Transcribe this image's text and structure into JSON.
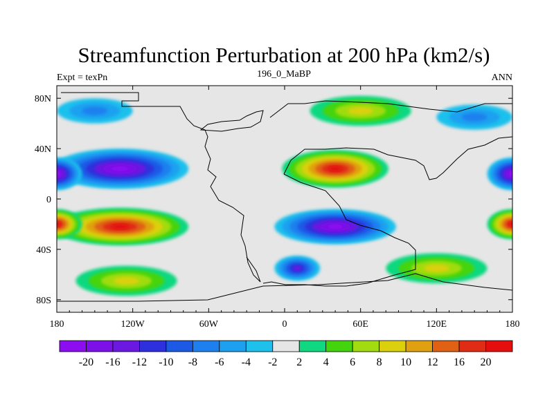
{
  "chart_data": {
    "type": "heatmap",
    "title": "Streamfunction Perturbation at 200 hPa (km2/s)",
    "subtitle_left": "Expt = texPn",
    "subtitle_center": "196_0_MaBP",
    "subtitle_right": "ANN",
    "x_range": [
      -180,
      180
    ],
    "y_range": [
      -90,
      90
    ],
    "x_ticks": [
      {
        "value": -180,
        "label": "180"
      },
      {
        "value": -120,
        "label": "120W"
      },
      {
        "value": -60,
        "label": "60W"
      },
      {
        "value": 0,
        "label": "0"
      },
      {
        "value": 60,
        "label": "60E"
      },
      {
        "value": 120,
        "label": "120E"
      },
      {
        "value": 180,
        "label": "180"
      }
    ],
    "y_ticks": [
      {
        "value": 80,
        "label": "80N"
      },
      {
        "value": 40,
        "label": "40N"
      },
      {
        "value": 0,
        "label": "0"
      },
      {
        "value": -40,
        "label": "40S"
      },
      {
        "value": -80,
        "label": "80S"
      }
    ],
    "colorbar": {
      "colors": [
        "#8c0ef0",
        "#7c10e8",
        "#6b18e0",
        "#2d30dc",
        "#1c5ae6",
        "#1e80ee",
        "#1ea0f0",
        "#1ec0ec",
        "#e6e6e6",
        "#10d880",
        "#44d40e",
        "#a0dc10",
        "#dcd00c",
        "#e0a010",
        "#e06014",
        "#e02c14",
        "#e40e0e"
      ],
      "labels": [
        "-20",
        "-16",
        "-12",
        "-10",
        "-8",
        "-6",
        "-4",
        "-2",
        "2",
        "4",
        "6",
        "8",
        "10",
        "12",
        "16",
        "20"
      ]
    },
    "features": [
      {
        "name": "north-pacific-low",
        "lon": -130,
        "lat": 24,
        "value": -21,
        "rx": 54,
        "ry": 16
      },
      {
        "name": "south-pacific-high",
        "lon": -130,
        "lat": -22,
        "value": 21,
        "rx": 54,
        "ry": 15
      },
      {
        "name": "asian-high",
        "lon": 40,
        "lat": 24,
        "value": 21,
        "rx": 42,
        "ry": 15
      },
      {
        "name": "southern-low",
        "lon": 40,
        "lat": -22,
        "value": -21,
        "rx": 48,
        "ry": 14
      },
      {
        "name": "southern-ocean-low",
        "lon": 10,
        "lat": -55,
        "value": -13,
        "rx": 18,
        "ry": 10
      },
      {
        "name": "arctic-high",
        "lon": 60,
        "lat": 70,
        "value": 8,
        "rx": 40,
        "ry": 12
      },
      {
        "name": "north-pacific-low-2",
        "lon": -150,
        "lat": 70,
        "value": -5,
        "rx": 30,
        "ry": 10
      },
      {
        "name": "dateline-low-east",
        "lon": 180,
        "lat": 20,
        "value": -19,
        "rx": 20,
        "ry": 13
      },
      {
        "name": "dateline-high-east",
        "lon": 180,
        "lat": -20,
        "value": 19,
        "rx": 20,
        "ry": 12
      },
      {
        "name": "east-siberia-low",
        "lon": 150,
        "lat": 65,
        "value": -6,
        "rx": 30,
        "ry": 10
      },
      {
        "name": "south-atl-high",
        "lon": -125,
        "lat": -65,
        "value": 8,
        "rx": 40,
        "ry": 12
      },
      {
        "name": "south-indian-high",
        "lon": 120,
        "lat": -55,
        "value": 8,
        "rx": 40,
        "ry": 12
      }
    ]
  }
}
